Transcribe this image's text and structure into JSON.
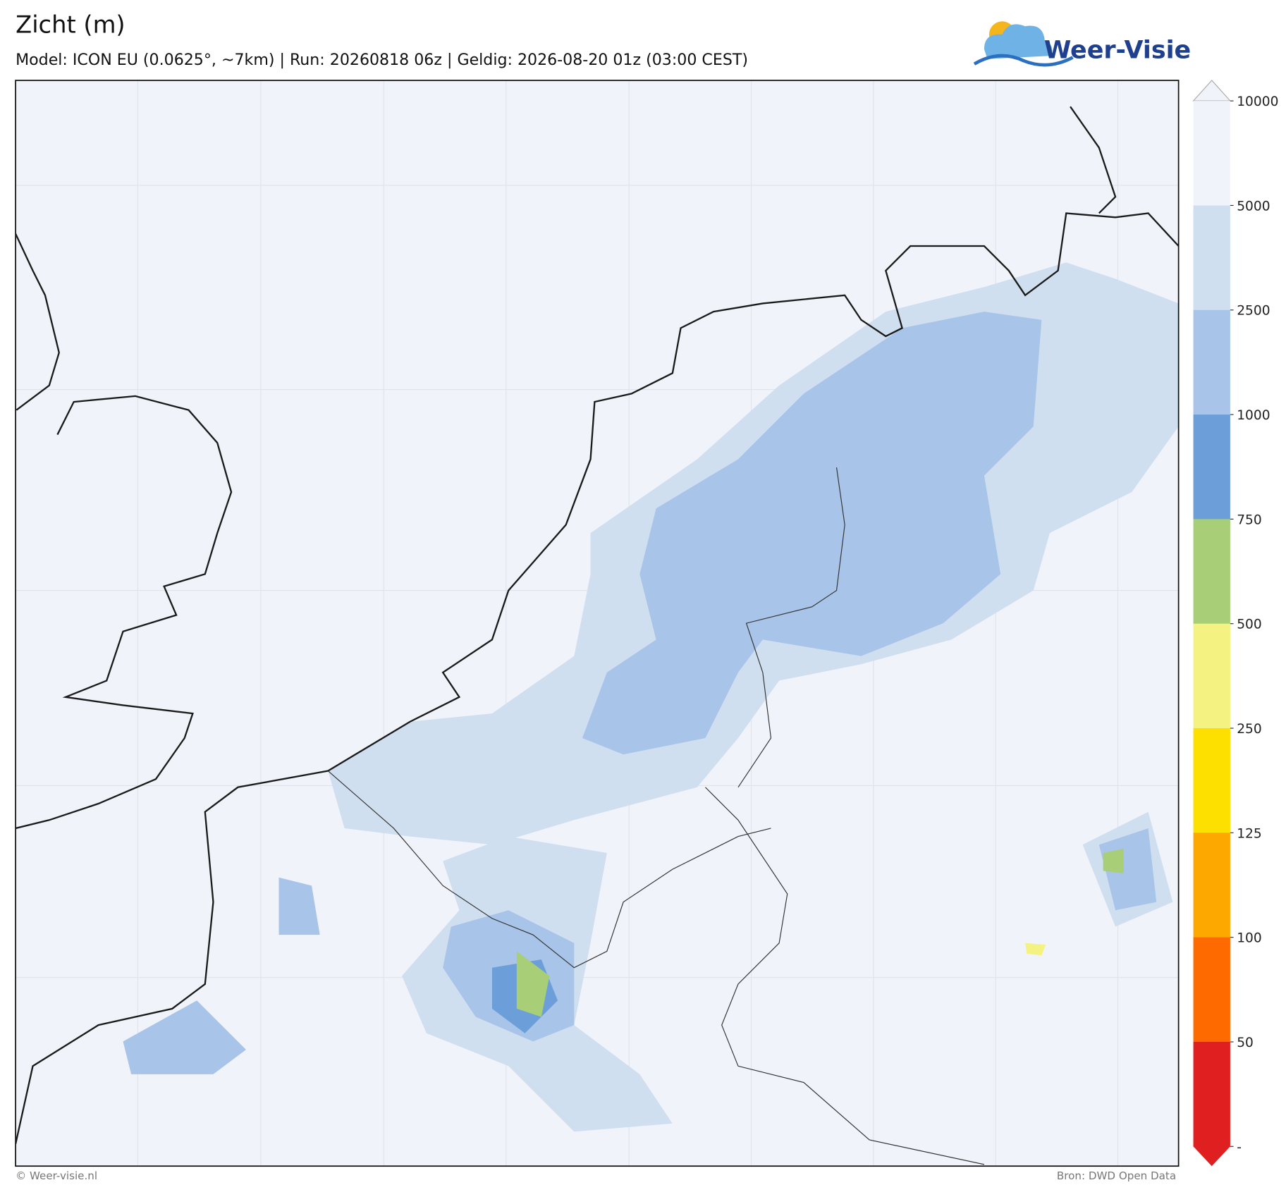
{
  "header": {
    "title": "Zicht (m)",
    "subtitle": "Model: ICON EU (0.0625°, ~7km)  |  Run: 20260818 06z  |  Geldig: 2026-08-20 01z (03:00 CEST)",
    "logo": "Weer-Visie"
  },
  "colorbar": {
    "ticks": [
      "10000",
      "5000",
      "2500",
      "1000",
      "750",
      "500",
      "250",
      "125",
      "100",
      "50",
      "-"
    ],
    "colors": [
      "#f0f4fa",
      "#d0dff0",
      "#a8c4e8",
      "#6c9fda",
      "#a8cf78",
      "#f4f280",
      "#fde000",
      "#fca800",
      "#ff6a00",
      "#e02020"
    ]
  },
  "footer": {
    "left": "© Weer-visie.nl",
    "right": "Bron: DWD Open Data"
  }
}
